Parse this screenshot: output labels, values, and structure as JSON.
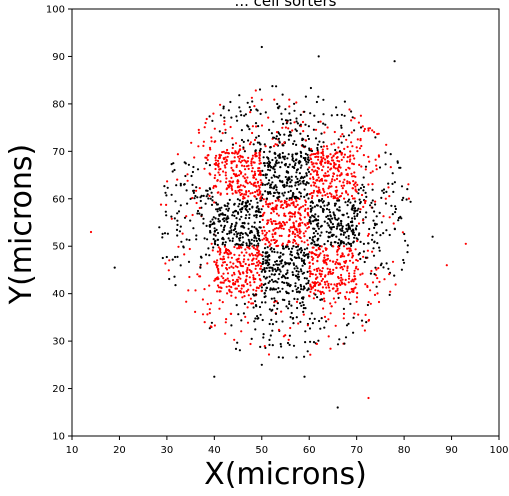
{
  "chart_data": {
    "type": "scatter",
    "title": "... cell sorters",
    "xlabel": "X(microns)",
    "ylabel": "Y(microns)",
    "xlim": [
      10,
      100
    ],
    "ylim": [
      10,
      100
    ],
    "xticks": [
      10,
      20,
      30,
      40,
      50,
      60,
      70,
      80,
      90,
      100
    ],
    "yticks": [
      10,
      20,
      30,
      40,
      50,
      60,
      70,
      80,
      90,
      100
    ],
    "grid": false,
    "legend": "none",
    "colors": {
      "black": "#000000",
      "red": "#ff0000"
    },
    "pattern": {
      "description_note": "",
      "center": [
        55,
        55
      ],
      "block_size": 10,
      "inner_blocks": [
        {
          "x": [
            50,
            60
          ],
          "y": [
            50,
            60
          ],
          "color": "red"
        },
        {
          "x": [
            40,
            50
          ],
          "y": [
            50,
            60
          ],
          "color": "black"
        },
        {
          "x": [
            60,
            70
          ],
          "y": [
            50,
            60
          ],
          "color": "black"
        },
        {
          "x": [
            50,
            60
          ],
          "y": [
            60,
            70
          ],
          "color": "black"
        },
        {
          "x": [
            50,
            60
          ],
          "y": [
            40,
            50
          ],
          "color": "black"
        },
        {
          "x": [
            40,
            50
          ],
          "y": [
            60,
            70
          ],
          "color": "red"
        },
        {
          "x": [
            60,
            70
          ],
          "y": [
            60,
            70
          ],
          "color": "red"
        },
        {
          "x": [
            40,
            50
          ],
          "y": [
            40,
            50
          ],
          "color": "red"
        },
        {
          "x": [
            60,
            70
          ],
          "y": [
            40,
            50
          ],
          "color": "red"
        }
      ],
      "outer_ring_radius": [
        15,
        27
      ],
      "outer_ring_colors": [
        "black",
        "red"
      ],
      "outliers": [
        {
          "x": 14,
          "y": 53,
          "color": "red"
        },
        {
          "x": 19,
          "y": 45.5,
          "color": "black"
        },
        {
          "x": 93,
          "y": 50.5,
          "color": "red"
        },
        {
          "x": 89,
          "y": 46,
          "color": "red"
        },
        {
          "x": 86,
          "y": 52,
          "color": "black"
        },
        {
          "x": 50,
          "y": 92,
          "color": "black"
        },
        {
          "x": 62,
          "y": 90,
          "color": "black"
        },
        {
          "x": 78,
          "y": 89,
          "color": "black"
        },
        {
          "x": 66,
          "y": 16,
          "color": "black"
        },
        {
          "x": 72.5,
          "y": 18,
          "color": "red"
        },
        {
          "x": 40,
          "y": 22.5,
          "color": "black"
        },
        {
          "x": 50,
          "y": 25,
          "color": "black"
        },
        {
          "x": 59,
          "y": 22.5,
          "color": "black"
        }
      ]
    }
  }
}
